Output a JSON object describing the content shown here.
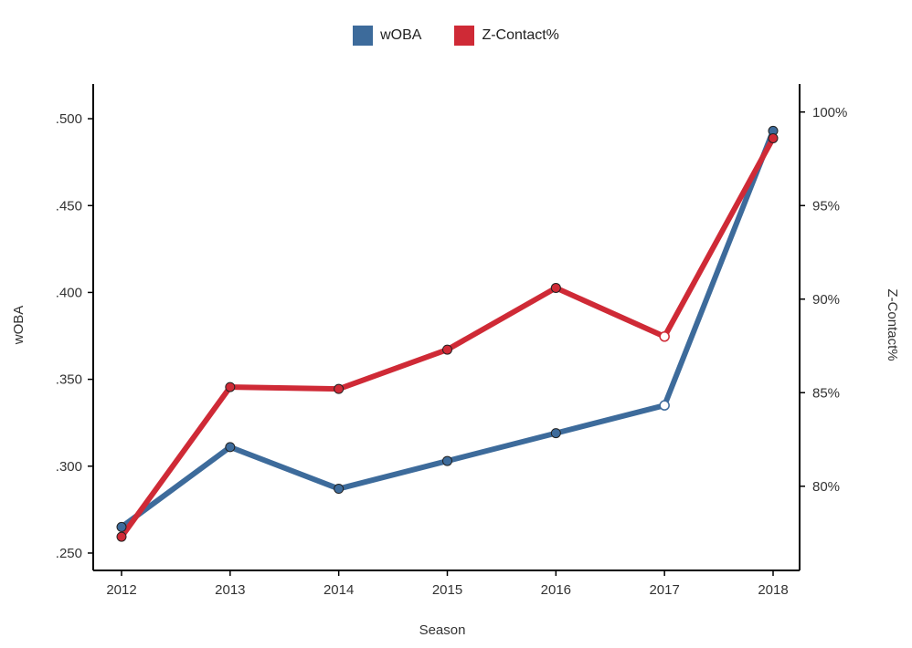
{
  "chart_data": {
    "type": "line",
    "title": "",
    "xlabel": "Season",
    "ylabel": "wOBA",
    "y2label": "Z-Contact%",
    "categories": [
      "2012",
      "2013",
      "2014",
      "2015",
      "2016",
      "2017",
      "2018"
    ],
    "ylim": [
      0.24,
      0.52
    ],
    "y2lim": [
      75.5,
      101.5
    ],
    "yticks": [
      ".500",
      ".450",
      ".400",
      ".350",
      ".300",
      ".250"
    ],
    "yticks_values": [
      0.5,
      0.45,
      0.4,
      0.35,
      0.3,
      0.25
    ],
    "y2ticks": [
      "100%",
      "95%",
      "90%",
      "85%",
      "80%"
    ],
    "y2ticks_values": [
      100,
      95,
      90,
      85,
      80
    ],
    "legend_position": "top-center",
    "grid": false,
    "series": [
      {
        "name": "wOBA",
        "axis": "left",
        "color": "#3d6b9b",
        "values": [
          0.265,
          0.311,
          0.287,
          0.303,
          0.319,
          0.335,
          0.493
        ],
        "hollow_points": [
          5
        ]
      },
      {
        "name": "Z-Contact%",
        "axis": "right",
        "color": "#cf2a36",
        "values": [
          77.3,
          85.3,
          85.2,
          87.3,
          90.6,
          88.0,
          98.6
        ],
        "hollow_points": [
          5
        ]
      }
    ]
  }
}
